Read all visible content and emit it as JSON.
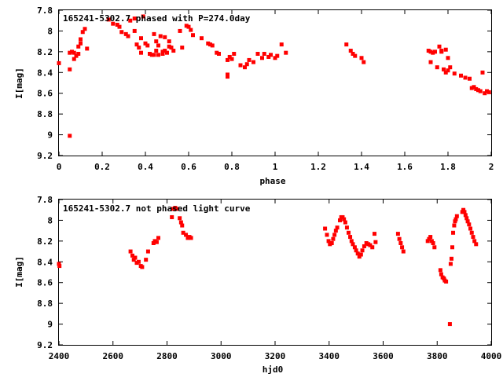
{
  "chart_data": [
    {
      "type": "scatter",
      "title": "165241-5302.7 phased with P=274.0day",
      "xlabel": "phase",
      "ylabel": "I[mag]",
      "xlim": [
        0,
        2
      ],
      "ylim": [
        9.2,
        7.8
      ],
      "y_inverted": true,
      "grid": false,
      "marker_color": "#ff0000",
      "xticks": [
        "0",
        "0.2",
        "0.4",
        "0.6",
        "0.8",
        "1",
        "1.2",
        "1.4",
        "1.6",
        "1.8",
        "2"
      ],
      "yticks": [
        "7.8",
        "8",
        "8.2",
        "8.4",
        "8.6",
        "8.8",
        "9",
        "9.2"
      ],
      "points": [
        [
          0.0,
          8.31
        ],
        [
          0.05,
          9.01
        ],
        [
          0.05,
          8.37
        ],
        [
          0.05,
          8.21
        ],
        [
          0.06,
          8.2
        ],
        [
          0.07,
          8.21
        ],
        [
          0.07,
          8.27
        ],
        [
          0.08,
          8.24
        ],
        [
          0.09,
          8.22
        ],
        [
          0.09,
          8.15
        ],
        [
          0.1,
          8.12
        ],
        [
          0.1,
          8.08
        ],
        [
          0.11,
          8.01
        ],
        [
          0.12,
          7.98
        ],
        [
          0.13,
          8.17
        ],
        [
          0.23,
          7.89
        ],
        [
          0.25,
          7.93
        ],
        [
          0.27,
          7.94
        ],
        [
          0.28,
          7.96
        ],
        [
          0.29,
          8.01
        ],
        [
          0.31,
          8.03
        ],
        [
          0.32,
          8.05
        ],
        [
          0.33,
          7.9
        ],
        [
          0.35,
          7.88
        ],
        [
          0.35,
          8.0
        ],
        [
          0.36,
          8.13
        ],
        [
          0.37,
          8.16
        ],
        [
          0.38,
          8.07
        ],
        [
          0.38,
          8.21
        ],
        [
          0.39,
          7.86
        ],
        [
          0.4,
          8.12
        ],
        [
          0.41,
          8.14
        ],
        [
          0.42,
          8.22
        ],
        [
          0.43,
          8.23
        ],
        [
          0.44,
          8.23
        ],
        [
          0.44,
          8.03
        ],
        [
          0.45,
          8.1
        ],
        [
          0.45,
          8.19
        ],
        [
          0.46,
          8.14
        ],
        [
          0.46,
          8.23
        ],
        [
          0.47,
          8.05
        ],
        [
          0.48,
          8.22
        ],
        [
          0.48,
          8.2
        ],
        [
          0.49,
          8.19
        ],
        [
          0.49,
          8.06
        ],
        [
          0.5,
          8.21
        ],
        [
          0.51,
          8.15
        ],
        [
          0.51,
          8.1
        ],
        [
          0.52,
          8.16
        ],
        [
          0.53,
          8.19
        ],
        [
          0.56,
          8.0
        ],
        [
          0.57,
          8.16
        ],
        [
          0.59,
          7.95
        ],
        [
          0.6,
          7.96
        ],
        [
          0.61,
          7.99
        ],
        [
          0.62,
          8.04
        ],
        [
          0.66,
          8.07
        ],
        [
          0.69,
          8.12
        ],
        [
          0.7,
          8.13
        ],
        [
          0.71,
          8.14
        ],
        [
          0.73,
          8.21
        ],
        [
          0.74,
          8.22
        ],
        [
          0.78,
          8.42
        ],
        [
          0.78,
          8.44
        ],
        [
          0.78,
          8.28
        ],
        [
          0.79,
          8.25
        ],
        [
          0.8,
          8.27
        ],
        [
          0.81,
          8.22
        ],
        [
          0.84,
          8.33
        ],
        [
          0.86,
          8.35
        ],
        [
          0.87,
          8.32
        ],
        [
          0.88,
          8.28
        ],
        [
          0.9,
          8.3
        ],
        [
          0.92,
          8.22
        ],
        [
          0.94,
          8.26
        ],
        [
          0.95,
          8.22
        ],
        [
          0.97,
          8.25
        ],
        [
          0.98,
          8.23
        ],
        [
          1.0,
          8.26
        ],
        [
          1.01,
          8.24
        ],
        [
          1.03,
          8.13
        ],
        [
          1.05,
          8.21
        ],
        [
          1.33,
          8.13
        ],
        [
          1.35,
          8.19
        ],
        [
          1.36,
          8.22
        ],
        [
          1.37,
          8.24
        ],
        [
          1.4,
          8.26
        ],
        [
          1.41,
          8.3
        ],
        [
          1.71,
          8.19
        ],
        [
          1.72,
          8.2
        ],
        [
          1.72,
          8.3
        ],
        [
          1.73,
          8.21
        ],
        [
          1.74,
          8.2
        ],
        [
          1.75,
          8.35
        ],
        [
          1.76,
          8.15
        ],
        [
          1.77,
          8.19
        ],
        [
          1.77,
          8.2
        ],
        [
          1.78,
          8.37
        ],
        [
          1.79,
          8.4
        ],
        [
          1.79,
          8.18
        ],
        [
          1.8,
          8.38
        ],
        [
          1.8,
          8.26
        ],
        [
          1.81,
          8.35
        ],
        [
          1.83,
          8.41
        ],
        [
          1.86,
          8.43
        ],
        [
          1.88,
          8.45
        ],
        [
          1.9,
          8.46
        ],
        [
          1.91,
          8.55
        ],
        [
          1.92,
          8.54
        ],
        [
          1.93,
          8.56
        ],
        [
          1.94,
          8.57
        ],
        [
          1.95,
          8.58
        ],
        [
          1.96,
          8.4
        ],
        [
          1.97,
          8.6
        ],
        [
          1.98,
          8.58
        ],
        [
          1.99,
          8.59
        ]
      ]
    },
    {
      "type": "scatter",
      "title": "165241-5302.7 not phased light curve",
      "xlabel": "hjd0",
      "ylabel": "I[mag]",
      "xlim": [
        2400,
        4000
      ],
      "ylim": [
        9.2,
        7.8
      ],
      "y_inverted": true,
      "grid": false,
      "marker_color": "#ff0000",
      "xticks": [
        "2400",
        "2600",
        "2800",
        "3000",
        "3200",
        "3400",
        "3600",
        "3800",
        "4000"
      ],
      "yticks": [
        "7.8",
        "8",
        "8.2",
        "8.4",
        "8.6",
        "8.8",
        "9",
        "9.2"
      ],
      "points": [
        [
          2400,
          8.42
        ],
        [
          2402,
          8.44
        ],
        [
          2665,
          8.3
        ],
        [
          2672,
          8.34
        ],
        [
          2677,
          8.38
        ],
        [
          2682,
          8.36
        ],
        [
          2688,
          8.41
        ],
        [
          2695,
          8.4
        ],
        [
          2703,
          8.44
        ],
        [
          2708,
          8.45
        ],
        [
          2722,
          8.38
        ],
        [
          2730,
          8.3
        ],
        [
          2750,
          8.22
        ],
        [
          2755,
          8.2
        ],
        [
          2762,
          8.21
        ],
        [
          2768,
          8.17
        ],
        [
          2818,
          7.97
        ],
        [
          2822,
          7.89
        ],
        [
          2830,
          7.88
        ],
        [
          2835,
          7.89
        ],
        [
          2847,
          7.98
        ],
        [
          2852,
          8.02
        ],
        [
          2856,
          8.05
        ],
        [
          2860,
          8.12
        ],
        [
          2870,
          8.14
        ],
        [
          2877,
          8.17
        ],
        [
          2883,
          8.16
        ],
        [
          2889,
          8.17
        ],
        [
          3385,
          8.08
        ],
        [
          3392,
          8.14
        ],
        [
          3398,
          8.2
        ],
        [
          3403,
          8.23
        ],
        [
          3410,
          8.22
        ],
        [
          3415,
          8.18
        ],
        [
          3420,
          8.14
        ],
        [
          3425,
          8.1
        ],
        [
          3430,
          8.07
        ],
        [
          3440,
          8.0
        ],
        [
          3445,
          7.97
        ],
        [
          3450,
          7.97
        ],
        [
          3455,
          7.99
        ],
        [
          3460,
          8.02
        ],
        [
          3466,
          8.07
        ],
        [
          3472,
          8.12
        ],
        [
          3478,
          8.16
        ],
        [
          3483,
          8.2
        ],
        [
          3488,
          8.23
        ],
        [
          3495,
          8.26
        ],
        [
          3500,
          8.29
        ],
        [
          3506,
          8.32
        ],
        [
          3512,
          8.35
        ],
        [
          3518,
          8.33
        ],
        [
          3523,
          8.29
        ],
        [
          3530,
          8.25
        ],
        [
          3538,
          8.22
        ],
        [
          3545,
          8.23
        ],
        [
          3552,
          8.24
        ],
        [
          3560,
          8.26
        ],
        [
          3568,
          8.13
        ],
        [
          3572,
          8.21
        ],
        [
          3655,
          8.13
        ],
        [
          3660,
          8.18
        ],
        [
          3665,
          8.22
        ],
        [
          3670,
          8.26
        ],
        [
          3675,
          8.3
        ],
        [
          3765,
          8.2
        ],
        [
          3770,
          8.18
        ],
        [
          3775,
          8.16
        ],
        [
          3780,
          8.2
        ],
        [
          3785,
          8.22
        ],
        [
          3790,
          8.26
        ],
        [
          3812,
          8.48
        ],
        [
          3815,
          8.52
        ],
        [
          3820,
          8.55
        ],
        [
          3825,
          8.56
        ],
        [
          3828,
          8.58
        ],
        [
          3833,
          8.59
        ],
        [
          3847,
          9.0
        ],
        [
          3850,
          8.42
        ],
        [
          3853,
          8.37
        ],
        [
          3856,
          8.26
        ],
        [
          3859,
          8.12
        ],
        [
          3863,
          8.05
        ],
        [
          3866,
          8.01
        ],
        [
          3869,
          7.99
        ],
        [
          3873,
          7.96
        ],
        [
          3893,
          7.92
        ],
        [
          3897,
          7.9
        ],
        [
          3901,
          7.92
        ],
        [
          3905,
          7.95
        ],
        [
          3909,
          7.98
        ],
        [
          3913,
          8.01
        ],
        [
          3918,
          8.04
        ],
        [
          3923,
          8.08
        ],
        [
          3928,
          8.12
        ],
        [
          3933,
          8.16
        ],
        [
          3938,
          8.2
        ],
        [
          3944,
          8.23
        ]
      ]
    }
  ]
}
